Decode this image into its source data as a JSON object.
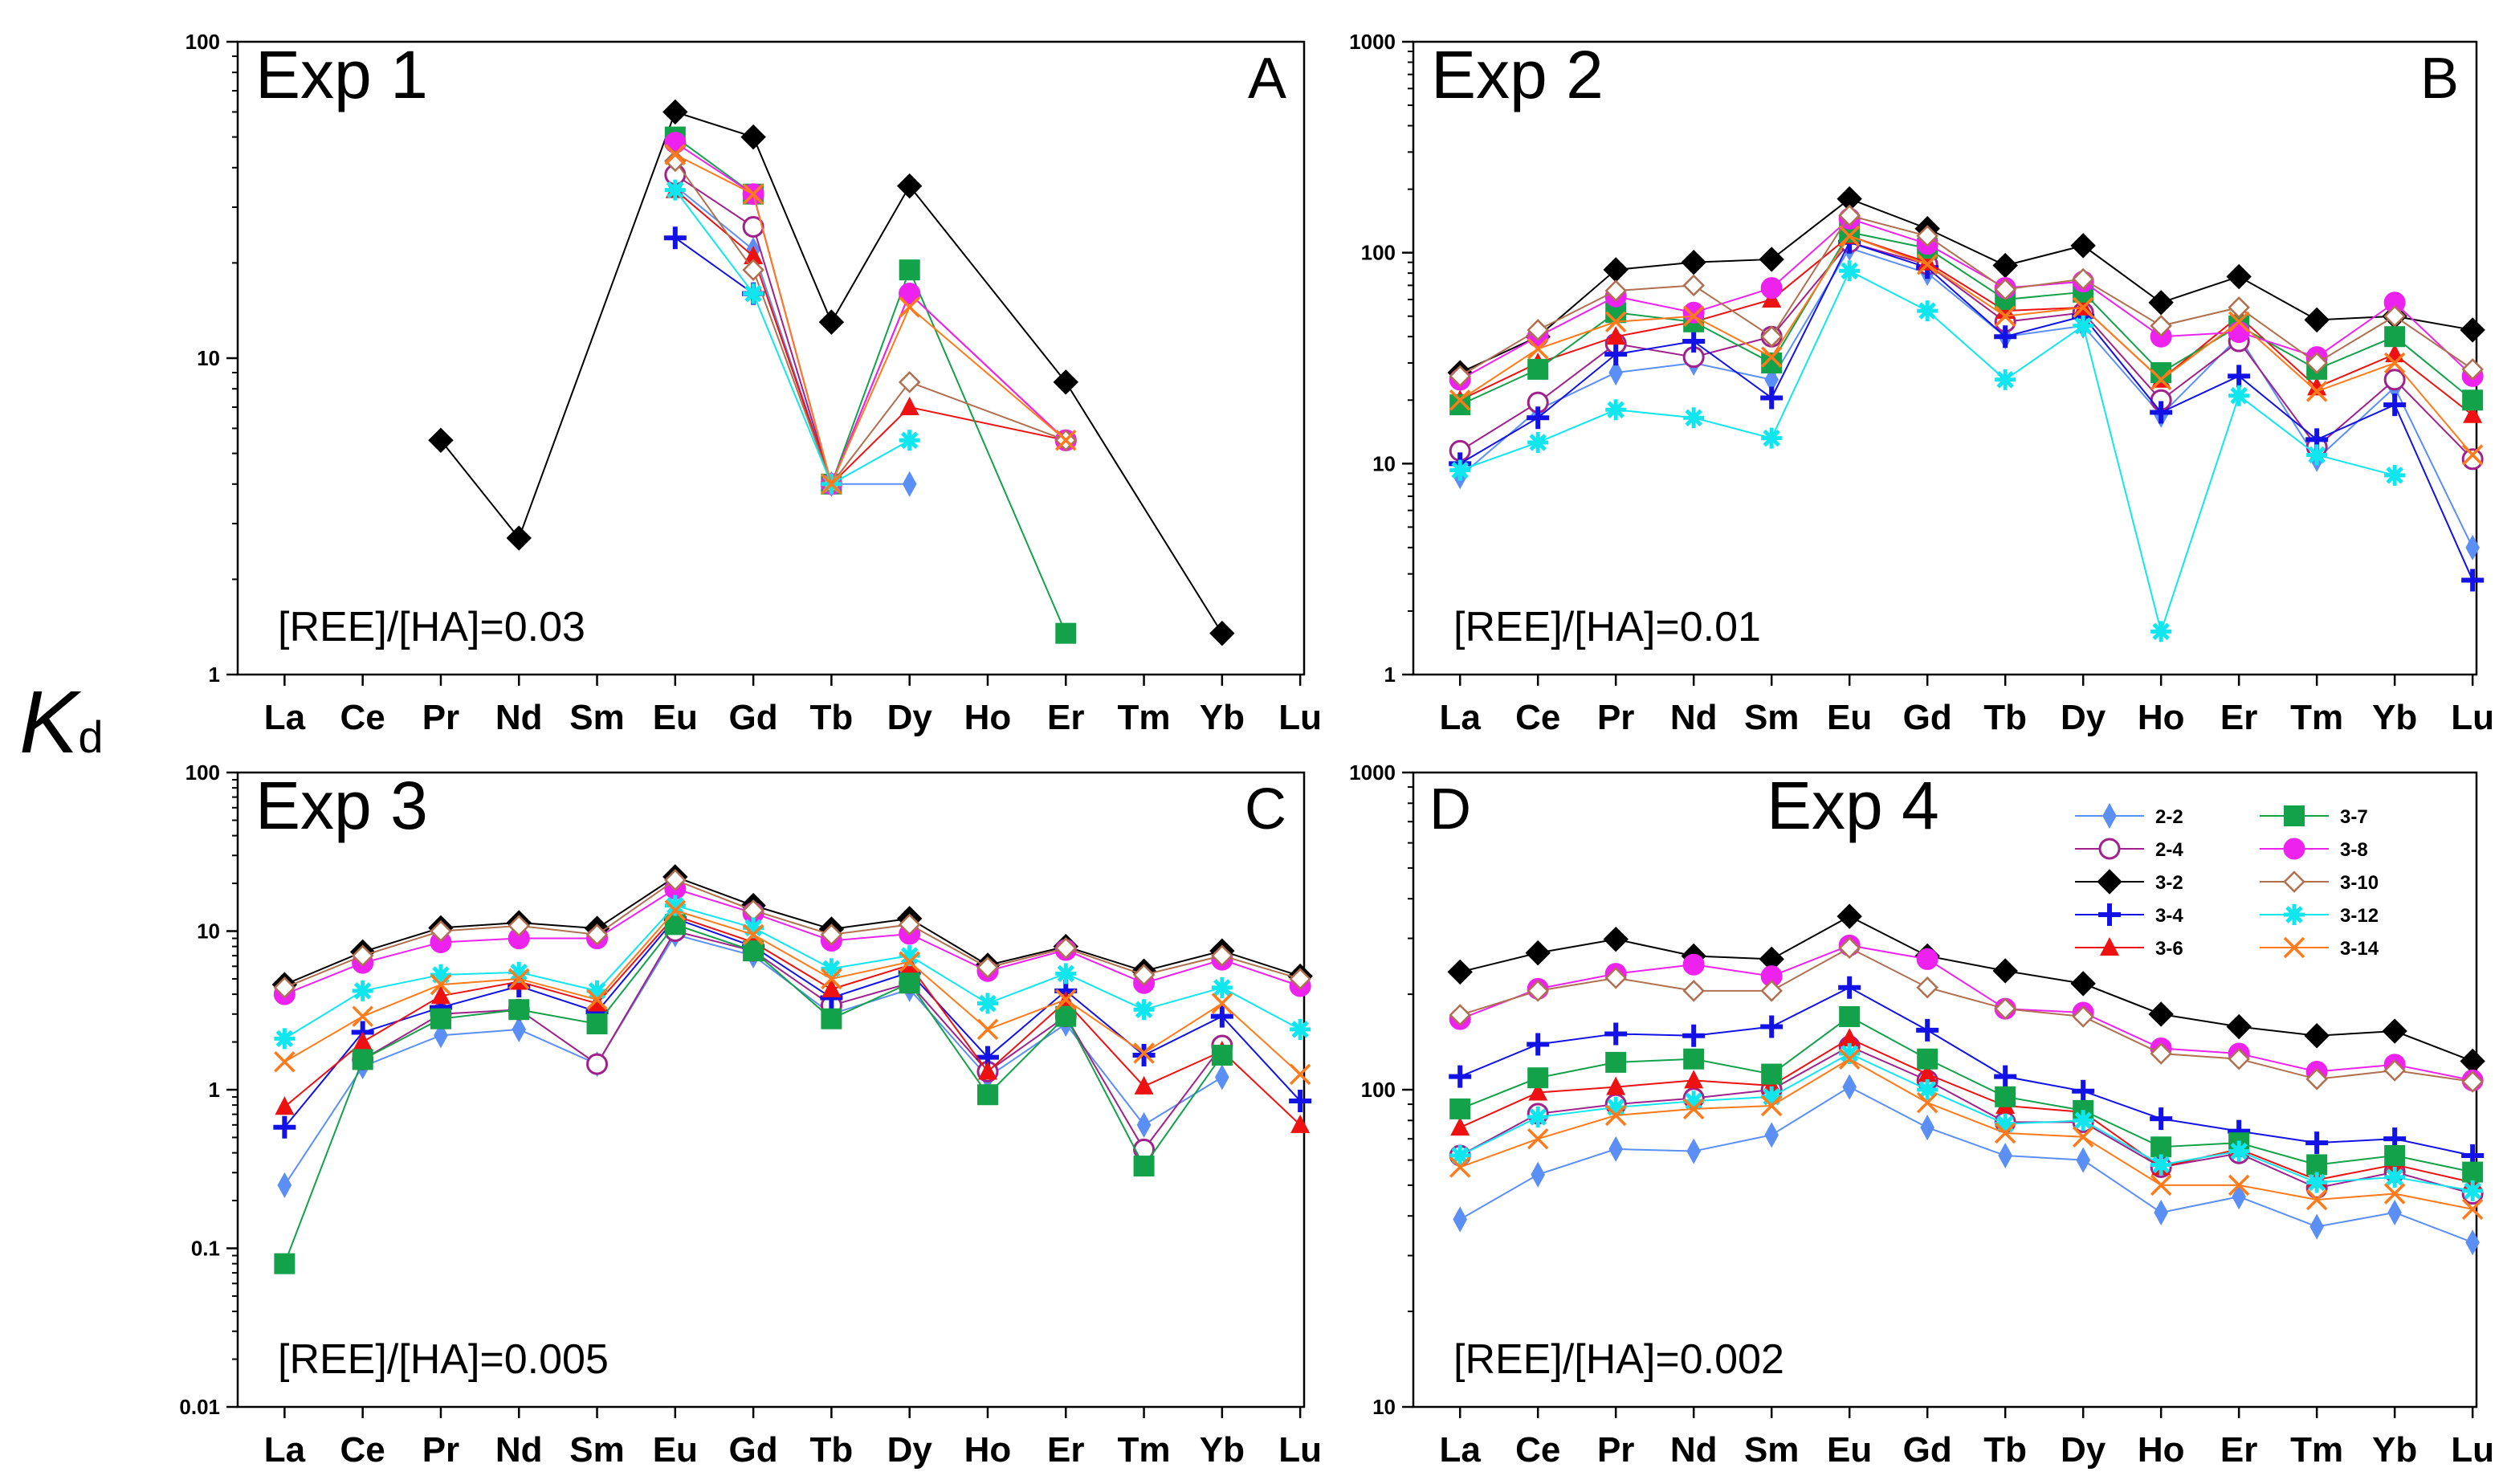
{
  "y_label": {
    "main": "K",
    "sub": "d"
  },
  "series_styles": [
    {
      "name": "2-2",
      "color": "#5b8ff5",
      "marker": "thin-diamond"
    },
    {
      "name": "2-4",
      "color": "#a0218c",
      "marker": "open-circle"
    },
    {
      "name": "3-2",
      "color": "#000000",
      "marker": "diamond"
    },
    {
      "name": "3-4",
      "color": "#1212e6",
      "marker": "plus"
    },
    {
      "name": "3-6",
      "color": "#ee1111",
      "marker": "triangle"
    },
    {
      "name": "3-7",
      "color": "#13a14a",
      "marker": "square"
    },
    {
      "name": "3-8",
      "color": "#ee22ee",
      "marker": "circle"
    },
    {
      "name": "3-10",
      "color": "#b07050",
      "marker": "open-diamond"
    },
    {
      "name": "3-12",
      "color": "#11e6ee",
      "marker": "star"
    },
    {
      "name": "3-14",
      "color": "#ff7a1a",
      "marker": "x"
    }
  ],
  "chart_data": [
    {
      "type": "line",
      "title": "Exp 1",
      "panel": "A",
      "annotation": "[REE]/[HA]=0.03",
      "y_scale": "log",
      "ylim": [
        1,
        100
      ],
      "y_ticks": [
        "1",
        "10",
        "100"
      ],
      "categories": [
        "La",
        "Ce",
        "Pr",
        "Nd",
        "Sm",
        "Eu",
        "Gd",
        "Tb",
        "Dy",
        "Ho",
        "Er",
        "Tm",
        "Yb",
        "Lu"
      ],
      "series": [
        {
          "name": "2-2",
          "values": [
            null,
            null,
            null,
            null,
            null,
            35,
            22,
            4,
            4,
            null,
            null,
            null,
            null,
            null
          ]
        },
        {
          "name": "2-4",
          "values": [
            null,
            null,
            null,
            null,
            null,
            38,
            26,
            4,
            16,
            null,
            5.5,
            null,
            null,
            null
          ]
        },
        {
          "name": "3-2",
          "values": [
            null,
            null,
            5.5,
            2.7,
            null,
            60,
            50,
            13,
            35,
            null,
            8.4,
            null,
            1.35,
            null
          ]
        },
        {
          "name": "3-4",
          "values": [
            null,
            null,
            null,
            null,
            null,
            24,
            16,
            null,
            null,
            null,
            null,
            null,
            null,
            null
          ]
        },
        {
          "name": "3-6",
          "values": [
            null,
            null,
            null,
            null,
            null,
            34,
            21,
            4,
            7,
            null,
            5.5,
            null,
            null,
            null
          ]
        },
        {
          "name": "3-7",
          "values": [
            null,
            null,
            null,
            null,
            null,
            50,
            33,
            4,
            19,
            null,
            1.35,
            null,
            null,
            null
          ]
        },
        {
          "name": "3-8",
          "values": [
            null,
            null,
            null,
            null,
            null,
            48,
            33,
            4,
            16,
            null,
            5.5,
            null,
            null,
            null
          ]
        },
        {
          "name": "3-10",
          "values": [
            null,
            null,
            null,
            null,
            null,
            42,
            19,
            4,
            8.4,
            null,
            5.5,
            null,
            null,
            null
          ]
        },
        {
          "name": "3-12",
          "values": [
            null,
            null,
            null,
            null,
            null,
            34,
            16,
            4,
            5.5,
            null,
            null,
            null,
            null,
            null
          ]
        },
        {
          "name": "3-14",
          "values": [
            null,
            null,
            null,
            null,
            null,
            44,
            33,
            4,
            14.5,
            null,
            5.5,
            null,
            null,
            null
          ]
        }
      ]
    },
    {
      "type": "line",
      "title": "Exp 2",
      "panel": "B",
      "annotation": "[REE]/[HA]=0.01",
      "y_scale": "log",
      "ylim": [
        1,
        1000
      ],
      "y_ticks": [
        "1",
        "10",
        "100",
        "1000"
      ],
      "categories": [
        "La",
        "Ce",
        "Pr",
        "Nd",
        "Sm",
        "Eu",
        "Gd",
        "Tb",
        "Dy",
        "Ho",
        "Er",
        "Tm",
        "Yb",
        "Lu"
      ],
      "series": [
        {
          "name": "2-2",
          "values": [
            8.7,
            18,
            27,
            30,
            25,
            105,
            80,
            40,
            45,
            17,
            40,
            10.5,
            23,
            4
          ]
        },
        {
          "name": "2-4",
          "values": [
            11.5,
            19.5,
            37,
            32,
            40,
            112,
            88,
            47,
            52,
            20,
            38,
            12,
            25,
            10.5
          ]
        },
        {
          "name": "3-2",
          "values": [
            27,
            40,
            83,
            90,
            93,
            180,
            130,
            87,
            108,
            58,
            77,
            48,
            50,
            43
          ]
        },
        {
          "name": "3-4",
          "values": [
            10,
            16.5,
            33,
            38,
            20.5,
            112,
            85,
            40,
            50,
            17.5,
            26,
            13,
            19,
            2.8
          ]
        },
        {
          "name": "3-6",
          "values": [
            20,
            30,
            40,
            47,
            60,
            120,
            90,
            53,
            55,
            25,
            50,
            23,
            33,
            17
          ]
        },
        {
          "name": "3-7",
          "values": [
            19,
            28,
            52,
            47,
            30,
            125,
            105,
            60,
            65,
            27,
            45,
            28,
            40,
            20
          ]
        },
        {
          "name": "3-8",
          "values": [
            25,
            40,
            62,
            52,
            68,
            145,
            110,
            68,
            73,
            40,
            42,
            32,
            58,
            26
          ]
        },
        {
          "name": "3-10",
          "values": [
            26,
            43,
            66,
            70,
            40,
            150,
            120,
            67,
            75,
            45,
            55,
            30,
            50,
            28
          ]
        },
        {
          "name": "3-12",
          "values": [
            9.3,
            12.6,
            18,
            16.5,
            13.2,
            82,
            53,
            25,
            45,
            1.6,
            21,
            11,
            8.8,
            null
          ]
        },
        {
          "name": "3-14",
          "values": [
            20,
            35,
            47,
            50,
            32,
            120,
            88,
            50,
            55,
            25,
            47,
            22,
            30,
            11
          ]
        }
      ]
    },
    {
      "type": "line",
      "title": "Exp 3",
      "panel": "C",
      "annotation": "[REE]/[HA]=0.005",
      "y_scale": "log",
      "ylim": [
        0.01,
        100
      ],
      "y_ticks": [
        "0.01",
        "0.1",
        "1",
        "10",
        "100"
      ],
      "categories": [
        "La",
        "Ce",
        "Pr",
        "Nd",
        "Sm",
        "Eu",
        "Gd",
        "Tb",
        "Dy",
        "Ho",
        "Er",
        "Tm",
        "Yb",
        "Lu"
      ],
      "series": [
        {
          "name": "2-2",
          "values": [
            0.25,
            1.4,
            2.2,
            2.4,
            1.45,
            9.5,
            7,
            3,
            4.3,
            1.2,
            2.6,
            0.6,
            1.2,
            null
          ]
        },
        {
          "name": "2-4",
          "values": [
            null,
            1.55,
            3,
            3.2,
            1.45,
            10,
            7.5,
            3.4,
            4.7,
            1.3,
            2.9,
            0.42,
            1.9,
            null
          ]
        },
        {
          "name": "3-2",
          "values": [
            4.6,
            7.4,
            10.5,
            11.3,
            10.4,
            22,
            14.5,
            10.3,
            12,
            6.1,
            8,
            5.6,
            7.5,
            5.2
          ]
        },
        {
          "name": "3-4",
          "values": [
            0.58,
            2.3,
            3.3,
            4.5,
            3.1,
            12,
            8,
            3.8,
            5.5,
            1.6,
            4.2,
            1.65,
            2.9,
            0.85
          ]
        },
        {
          "name": "3-6",
          "values": [
            0.78,
            2,
            3.9,
            4.8,
            3.5,
            12.5,
            8.5,
            4.3,
            6.1,
            1.3,
            3.6,
            1.05,
            1.75,
            0.6
          ]
        },
        {
          "name": "3-7",
          "values": [
            0.08,
            1.55,
            2.8,
            3.2,
            2.6,
            11,
            7.5,
            2.8,
            4.7,
            0.93,
            2.9,
            0.33,
            1.65,
            null
          ]
        },
        {
          "name": "3-8",
          "values": [
            4,
            6.3,
            8.5,
            9,
            9,
            18.5,
            13,
            8.7,
            9.6,
            5.6,
            7.6,
            4.7,
            6.6,
            4.5
          ]
        },
        {
          "name": "3-10",
          "values": [
            4.4,
            7,
            10,
            10.8,
            9.5,
            21,
            13.5,
            9.5,
            11,
            5.9,
            7.8,
            5.3,
            7,
            5
          ]
        },
        {
          "name": "3-12",
          "values": [
            2.1,
            4.2,
            5.3,
            5.5,
            4.2,
            14.5,
            10.5,
            5.8,
            7,
            3.5,
            5.4,
            3.2,
            4.4,
            2.4
          ]
        },
        {
          "name": "3-14",
          "values": [
            1.5,
            2.9,
            4.6,
            5,
            3.7,
            13.5,
            9.5,
            5,
            6.4,
            2.4,
            3.7,
            1.7,
            3.5,
            1.25
          ]
        }
      ]
    },
    {
      "type": "line",
      "title": "Exp 4",
      "panel": "D",
      "annotation": "[REE]/[HA]=0.002",
      "y_scale": "log",
      "ylim": [
        10,
        1000
      ],
      "y_ticks": [
        "10",
        "100",
        "1000"
      ],
      "categories": [
        "La",
        "Ce",
        "Pr",
        "Nd",
        "Sm",
        "Eu",
        "Gd",
        "Tb",
        "Dy",
        "Ho",
        "Er",
        "Tm",
        "Yb",
        "Lu"
      ],
      "legend_position": "top-right",
      "series": [
        {
          "name": "2-2",
          "values": [
            39,
            54,
            65,
            64,
            72,
            102,
            76,
            62,
            60,
            41,
            46,
            37,
            41,
            33
          ]
        },
        {
          "name": "2-4",
          "values": [
            62,
            84,
            90,
            94,
            100,
            137,
            107,
            79,
            79,
            57,
            63,
            49,
            55,
            47
          ]
        },
        {
          "name": "3-2",
          "values": [
            235,
            270,
            298,
            264,
            258,
            352,
            264,
            237,
            216,
            173,
            158,
            148,
            153,
            123
          ]
        },
        {
          "name": "3-4",
          "values": [
            110,
            139,
            150,
            148,
            158,
            210,
            154,
            110,
            99,
            81,
            74,
            68,
            70,
            62
          ]
        },
        {
          "name": "3-6",
          "values": [
            76,
            98,
            102,
            107,
            103,
            145,
            112,
            89,
            85,
            57,
            65,
            52,
            58,
            51
          ]
        },
        {
          "name": "3-7",
          "values": [
            87,
            109,
            122,
            125,
            112,
            170,
            125,
            95,
            86,
            66,
            68,
            58,
            62,
            55
          ]
        },
        {
          "name": "3-8",
          "values": [
            167,
            208,
            232,
            248,
            228,
            285,
            258,
            180,
            175,
            135,
            130,
            114,
            120,
            107
          ]
        },
        {
          "name": "3-10",
          "values": [
            172,
            205,
            225,
            205,
            205,
            280,
            210,
            180,
            170,
            130,
            125,
            108,
            115,
            106
          ]
        },
        {
          "name": "3-12",
          "values": [
            62,
            82,
            88,
            92,
            95,
            130,
            100,
            78,
            80,
            58,
            64,
            51,
            53,
            48
          ]
        },
        {
          "name": "3-14",
          "values": [
            57,
            70,
            83,
            87,
            89,
            125,
            91,
            73,
            71,
            50,
            50,
            45,
            47,
            42
          ]
        }
      ]
    }
  ]
}
